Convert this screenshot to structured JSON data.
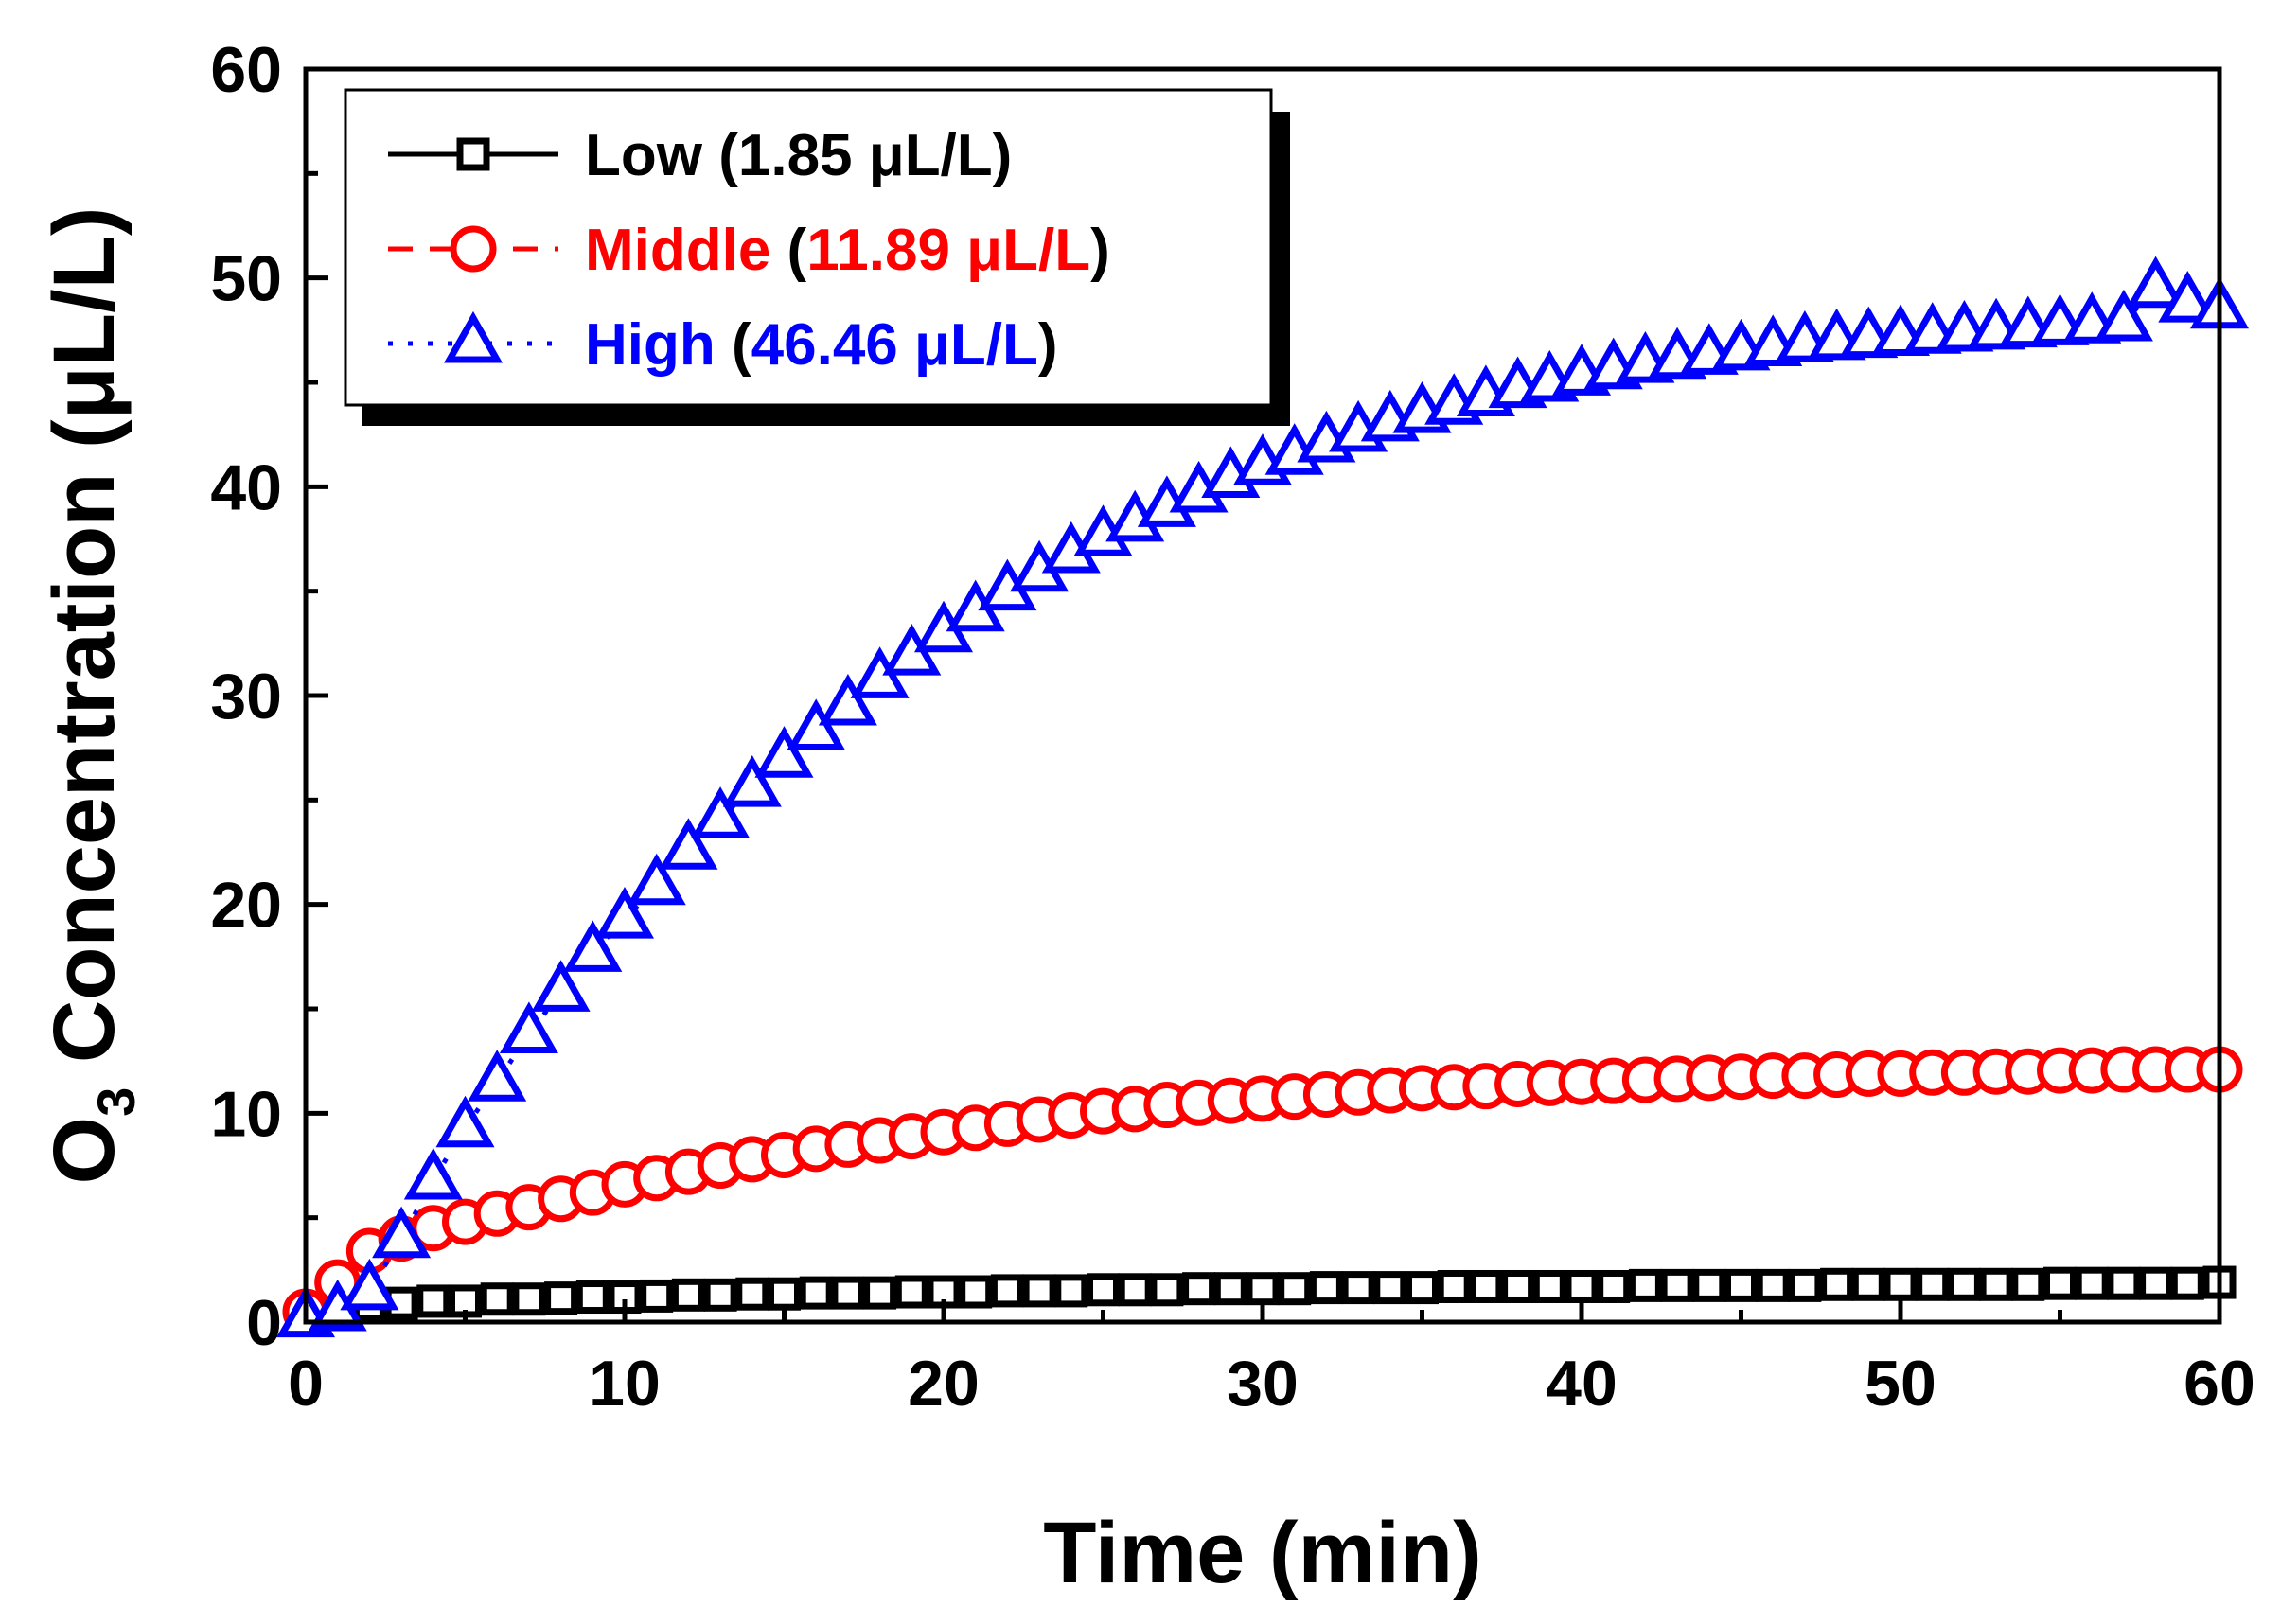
{
  "chart_data": {
    "type": "scatter",
    "title": "",
    "xlabel": "Time (min)",
    "ylabel_main": "O",
    "ylabel_sub": "3",
    "ylabel_rest": " Concentration (μL/L)",
    "xlim": [
      0,
      60
    ],
    "ylim": [
      0,
      60
    ],
    "xticks": [
      0,
      10,
      20,
      30,
      40,
      50,
      60
    ],
    "yticks": [
      0,
      10,
      20,
      30,
      40,
      50,
      60
    ],
    "x": [
      0,
      1,
      2,
      3,
      4,
      5,
      6,
      7,
      8,
      9,
      10,
      11,
      12,
      13,
      14,
      15,
      16,
      17,
      18,
      19,
      20,
      21,
      22,
      23,
      24,
      25,
      26,
      27,
      28,
      29,
      30,
      31,
      32,
      33,
      34,
      35,
      36,
      37,
      38,
      39,
      40,
      41,
      42,
      43,
      44,
      45,
      46,
      47,
      48,
      49,
      50,
      51,
      52,
      53,
      54,
      55,
      56,
      57,
      58,
      59,
      60
    ],
    "legend_position": "top-left",
    "series": [
      {
        "name": "Low",
        "legend_label": "Low",
        "legend_open": " (",
        "legend_value": "1.85 μL/L",
        "legend_close": ")",
        "color": "#000000",
        "marker": "square",
        "line_style": "solid",
        "values": [
          0.3,
          0.6,
          0.8,
          0.9,
          1.0,
          1.0,
          1.1,
          1.1,
          1.15,
          1.2,
          1.2,
          1.25,
          1.3,
          1.3,
          1.35,
          1.35,
          1.4,
          1.4,
          1.4,
          1.45,
          1.45,
          1.45,
          1.5,
          1.5,
          1.5,
          1.55,
          1.55,
          1.55,
          1.6,
          1.6,
          1.6,
          1.6,
          1.65,
          1.65,
          1.65,
          1.65,
          1.7,
          1.7,
          1.7,
          1.7,
          1.7,
          1.7,
          1.75,
          1.75,
          1.75,
          1.75,
          1.75,
          1.75,
          1.8,
          1.8,
          1.8,
          1.8,
          1.8,
          1.8,
          1.8,
          1.85,
          1.85,
          1.85,
          1.85,
          1.85,
          1.9
        ]
      },
      {
        "name": "Middle",
        "legend_label": "Middle",
        "legend_open": " (",
        "legend_value": "11.89 μL/L",
        "legend_close": ")",
        "color": "#ff0000",
        "marker": "circle",
        "line_style": "dash",
        "values": [
          0.5,
          1.9,
          3.4,
          4.0,
          4.5,
          4.8,
          5.2,
          5.5,
          5.9,
          6.2,
          6.6,
          6.9,
          7.2,
          7.5,
          7.8,
          8.0,
          8.3,
          8.5,
          8.7,
          8.9,
          9.1,
          9.3,
          9.5,
          9.7,
          9.9,
          10.1,
          10.2,
          10.4,
          10.5,
          10.6,
          10.7,
          10.8,
          10.9,
          11.0,
          11.1,
          11.2,
          11.25,
          11.3,
          11.4,
          11.45,
          11.5,
          11.55,
          11.6,
          11.65,
          11.7,
          11.75,
          11.8,
          11.8,
          11.85,
          11.9,
          11.9,
          11.95,
          11.95,
          12.0,
          12.0,
          12.05,
          12.05,
          12.1,
          12.1,
          12.1,
          12.1
        ]
      },
      {
        "name": "High",
        "legend_label": "High",
        "legend_open": " (",
        "legend_value": "46.46 μL/L",
        "legend_close": ")",
        "color": "#0000ff",
        "marker": "triangle",
        "line_style": "dot",
        "values": [
          0.2,
          0.5,
          1.5,
          4.0,
          6.8,
          9.3,
          11.5,
          13.8,
          15.8,
          17.7,
          19.3,
          20.9,
          22.6,
          24.1,
          25.6,
          27.0,
          28.3,
          29.5,
          30.8,
          31.9,
          33.0,
          34.0,
          35.0,
          35.9,
          36.8,
          37.6,
          38.3,
          39.0,
          39.7,
          40.4,
          41.0,
          41.5,
          42.1,
          42.6,
          43.1,
          43.5,
          43.9,
          44.3,
          44.7,
          45.0,
          45.3,
          45.6,
          45.9,
          46.1,
          46.3,
          46.5,
          46.7,
          46.9,
          47.0,
          47.1,
          47.2,
          47.3,
          47.4,
          47.5,
          47.6,
          47.7,
          47.8,
          47.9,
          49.5,
          48.8,
          48.5
        ]
      }
    ]
  }
}
